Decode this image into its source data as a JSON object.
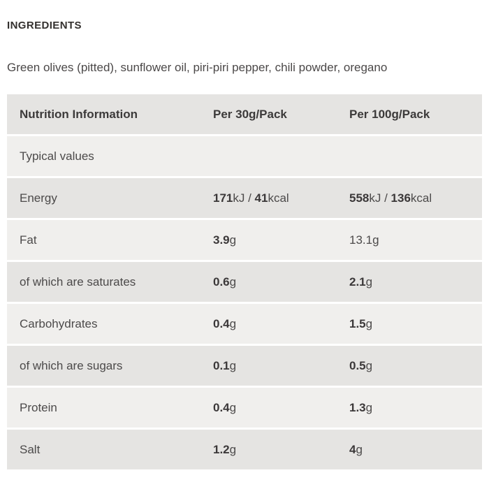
{
  "page": {
    "ingredients_heading": "INGREDIENTS",
    "ingredients_text": "Green olives (pitted), sunflower oil, piri-piri pepper, chili powder, oregano"
  },
  "colors": {
    "row_dark": "#e5e4e2",
    "row_light": "#f0efed",
    "heading_text": "#33302e",
    "body_text": "#4b4848",
    "bold_value_text": "#3b3839"
  },
  "nutrition_table": {
    "columns": [
      "Nutrition Information",
      "Per 30g/Pack",
      "Per 100g/Pack"
    ],
    "rows": [
      {
        "label": "Typical values",
        "per30": [],
        "per100": []
      },
      {
        "label": "Energy",
        "per30": [
          [
            "171",
            true
          ],
          [
            "kJ / ",
            false
          ],
          [
            "41",
            true
          ],
          [
            "kcal",
            false
          ]
        ],
        "per100": [
          [
            "558",
            true
          ],
          [
            "kJ / ",
            false
          ],
          [
            "136",
            true
          ],
          [
            "kcal",
            false
          ]
        ]
      },
      {
        "label": "Fat",
        "per30": [
          [
            "3.9",
            true
          ],
          [
            "g",
            false
          ]
        ],
        "per100": [
          [
            "13.1g",
            false
          ]
        ]
      },
      {
        "label": "of which are saturates",
        "per30": [
          [
            "0.6",
            true
          ],
          [
            "g",
            false
          ]
        ],
        "per100": [
          [
            "2.1",
            true
          ],
          [
            "g",
            false
          ]
        ]
      },
      {
        "label": "Carbohydrates",
        "per30": [
          [
            "0.4",
            true
          ],
          [
            "g",
            false
          ]
        ],
        "per100": [
          [
            "1.5",
            true
          ],
          [
            "g",
            false
          ]
        ]
      },
      {
        "label": "of which are sugars",
        "per30": [
          [
            "0.1",
            true
          ],
          [
            "g",
            false
          ]
        ],
        "per100": [
          [
            "0.5",
            true
          ],
          [
            "g",
            false
          ]
        ]
      },
      {
        "label": "Protein",
        "per30": [
          [
            "0.4",
            true
          ],
          [
            "g",
            false
          ]
        ],
        "per100": [
          [
            "1.3",
            true
          ],
          [
            "g",
            false
          ]
        ]
      },
      {
        "label": "Salt",
        "per30": [
          [
            "1.2",
            true
          ],
          [
            "g",
            false
          ]
        ],
        "per100": [
          [
            "4",
            true
          ],
          [
            "g",
            false
          ]
        ]
      }
    ]
  }
}
